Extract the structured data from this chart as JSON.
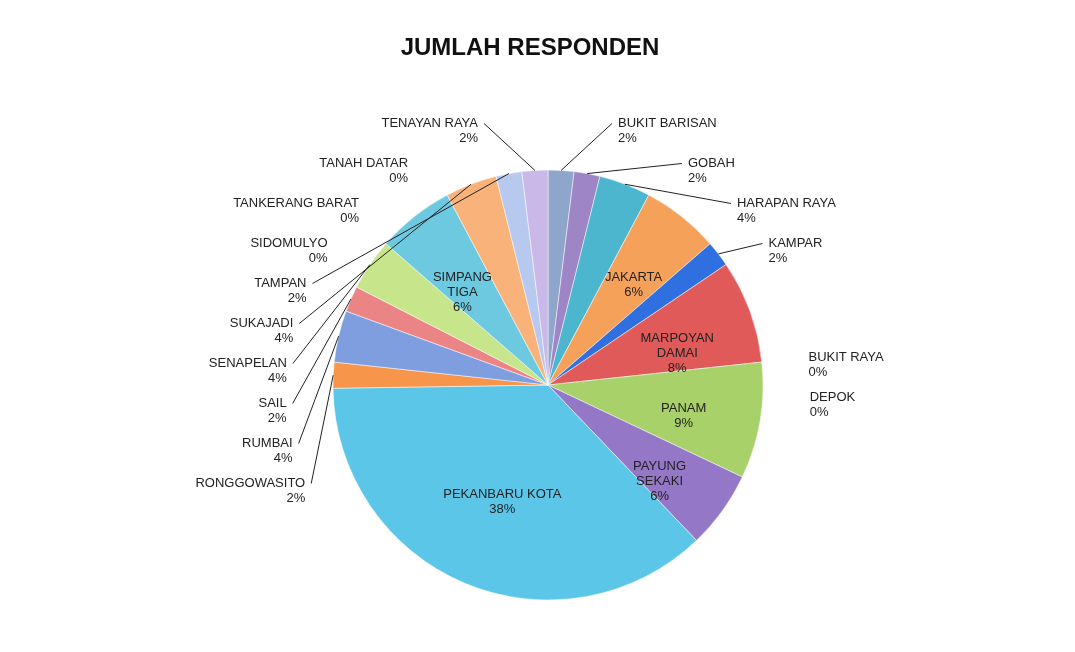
{
  "chart_data": {
    "type": "pie",
    "title": "JUMLAH RESPONDEN",
    "categories": [
      "BUKIT BARISAN",
      "GOBAH",
      "HARAPAN RAYA",
      "JAKARTA",
      "KAMPAR",
      "MARPOYAN DAMAI",
      "BUKIT RAYA",
      "DEPOK",
      "PANAM",
      "PAYUNG SEKAKI",
      "PEKANBARU KOTA",
      "RONGGOWASITO",
      "RUMBAI",
      "SAIL",
      "SENAPELAN",
      "SIMPANG TIGA",
      "SUKAJADI",
      "TAMPAN",
      "TANAH DATAR",
      "TANKERANG BARAT",
      "SIDOMULYO",
      "TENAYAN RAYA"
    ],
    "values": [
      2,
      2,
      4,
      6,
      2,
      8,
      0,
      0,
      9,
      6,
      38,
      2,
      4,
      2,
      4,
      6,
      4,
      2,
      0,
      0,
      0,
      2
    ],
    "value_labels": [
      "2%",
      "2%",
      "4%",
      "6%",
      "2%",
      "8%",
      "0%",
      "0%",
      "9%",
      "6%",
      "38%",
      "2%",
      "4%",
      "2%",
      "4%",
      "6%",
      "4%",
      "2%",
      "0%",
      "0%",
      "0%",
      "2%"
    ],
    "colors": [
      "#8fa6cc",
      "#9e86c6",
      "#4bb6ce",
      "#f5a15a",
      "#2f6fe0",
      "#e05a5a",
      "#b5d86a",
      "#9a7cc4",
      "#a8d16a",
      "#9577c8",
      "#5bc6e8",
      "#f7964a",
      "#7e9ee0",
      "#eb8585",
      "#c7e58a",
      "#6cc9e0",
      "#f9b27a",
      "#b8c9f0",
      "#f2a0a0",
      "#d7e9a9",
      "#bba7dd",
      "#c9b8e8"
    ],
    "legend": false
  }
}
